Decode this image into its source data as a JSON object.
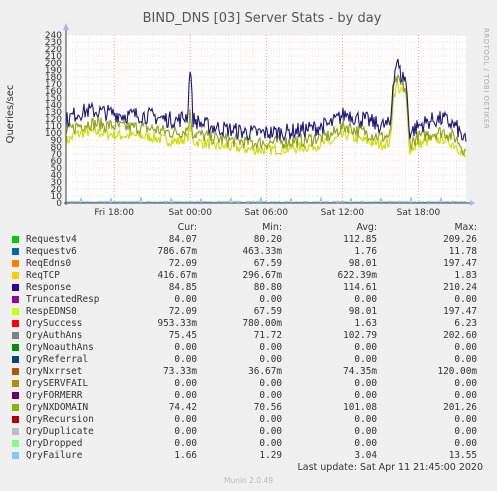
{
  "chart_data": {
    "type": "line",
    "title": "BIND_DNS [03] Server Stats - by day",
    "ylabel": "Queries/sec",
    "side_label": "RRDTOOL / TOBI OETIKER",
    "ylim": [
      0,
      240
    ],
    "y_ticks": [
      "0",
      "10",
      "20",
      "30",
      "40",
      "50",
      "60",
      "70",
      "80",
      "90",
      "100",
      "110",
      "120",
      "130",
      "140",
      "150",
      "160",
      "170",
      "180",
      "190",
      "200",
      "210",
      "220",
      "230",
      "240"
    ],
    "x_ticks": [
      "Fri 18:00",
      "Sat 00:00",
      "Sat 06:00",
      "Sat 12:00",
      "Sat 18:00"
    ],
    "x_tick_hours": [
      18,
      24,
      30,
      36,
      42
    ],
    "x_range_hours": [
      14.2,
      45.75
    ],
    "grid": true,
    "series": [
      {
        "name": "Response",
        "color": "#1a1a7a",
        "profile": [
          [
            14.2,
            118
          ],
          [
            15,
            128
          ],
          [
            16,
            132
          ],
          [
            17,
            130
          ],
          [
            18,
            128
          ],
          [
            19,
            125
          ],
          [
            20,
            126
          ],
          [
            21,
            124
          ],
          [
            22,
            120
          ],
          [
            23,
            118
          ],
          [
            23.8,
            125
          ],
          [
            24,
            205
          ],
          [
            24.2,
            120
          ],
          [
            25,
            112
          ],
          [
            26,
            108
          ],
          [
            27,
            105
          ],
          [
            28,
            102
          ],
          [
            29,
            100
          ],
          [
            30,
            100
          ],
          [
            31,
            101
          ],
          [
            32,
            102
          ],
          [
            33,
            105
          ],
          [
            34,
            108
          ],
          [
            35,
            112
          ],
          [
            36,
            125
          ],
          [
            36.5,
            128
          ],
          [
            37,
            122
          ],
          [
            38,
            118
          ],
          [
            39,
            110
          ],
          [
            39.8,
            112
          ],
          [
            40,
            175
          ],
          [
            40.3,
            205
          ],
          [
            40.6,
            182
          ],
          [
            41,
            178
          ],
          [
            41.3,
            100
          ],
          [
            42,
            110
          ],
          [
            43,
            118
          ],
          [
            44,
            120
          ],
          [
            45,
            108
          ],
          [
            45.75,
            85
          ]
        ],
        "noise": 12
      },
      {
        "name": "QryAuthAns",
        "color": "#8ea11a",
        "profile": [
          [
            14.2,
            100
          ],
          [
            15,
            110
          ],
          [
            16,
            114
          ],
          [
            17,
            112
          ],
          [
            18,
            110
          ],
          [
            19,
            108
          ],
          [
            20,
            108
          ],
          [
            21,
            106
          ],
          [
            22,
            102
          ],
          [
            23,
            100
          ],
          [
            23.8,
            106
          ],
          [
            24,
            130
          ],
          [
            24.2,
            100
          ],
          [
            25,
            96
          ],
          [
            26,
            92
          ],
          [
            27,
            90
          ],
          [
            28,
            88
          ],
          [
            29,
            86
          ],
          [
            30,
            86
          ],
          [
            31,
            87
          ],
          [
            32,
            88
          ],
          [
            33,
            90
          ],
          [
            34,
            93
          ],
          [
            35,
            96
          ],
          [
            36,
            108
          ],
          [
            36.5,
            110
          ],
          [
            37,
            104
          ],
          [
            38,
            100
          ],
          [
            39,
            94
          ],
          [
            39.8,
            96
          ],
          [
            40,
            160
          ],
          [
            40.3,
            176
          ],
          [
            40.6,
            168
          ],
          [
            41,
            164
          ],
          [
            41.3,
            85
          ],
          [
            42,
            94
          ],
          [
            43,
            100
          ],
          [
            44,
            102
          ],
          [
            45,
            92
          ],
          [
            45.75,
            72
          ]
        ],
        "noise": 10
      },
      {
        "name": "RespEDNS0",
        "color": "#ccdd00",
        "profile": [
          [
            14.2,
            88
          ],
          [
            15,
            98
          ],
          [
            16,
            102
          ],
          [
            17,
            100
          ],
          [
            18,
            98
          ],
          [
            19,
            96
          ],
          [
            20,
            96
          ],
          [
            21,
            94
          ],
          [
            22,
            90
          ],
          [
            23,
            88
          ],
          [
            23.8,
            94
          ],
          [
            24,
            110
          ],
          [
            24.2,
            88
          ],
          [
            25,
            86
          ],
          [
            26,
            82
          ],
          [
            27,
            80
          ],
          [
            28,
            78
          ],
          [
            29,
            76
          ],
          [
            30,
            76
          ],
          [
            31,
            77
          ],
          [
            32,
            78
          ],
          [
            33,
            80
          ],
          [
            34,
            83
          ],
          [
            35,
            86
          ],
          [
            36,
            96
          ],
          [
            36.5,
            98
          ],
          [
            37,
            92
          ],
          [
            38,
            88
          ],
          [
            39,
            84
          ],
          [
            39.8,
            86
          ],
          [
            40,
            150
          ],
          [
            40.3,
            168
          ],
          [
            40.6,
            160
          ],
          [
            41,
            156
          ],
          [
            41.3,
            76
          ],
          [
            42,
            84
          ],
          [
            43,
            90
          ],
          [
            44,
            92
          ],
          [
            45,
            82
          ],
          [
            45.75,
            64
          ]
        ],
        "noise": 8
      },
      {
        "name": "QryFailure",
        "color": "#7cc6f2",
        "profile": [
          [
            14.2,
            1.5
          ],
          [
            30,
            1.5
          ],
          [
            45.75,
            1.5
          ]
        ],
        "noise": 1,
        "spikes": 6
      }
    ]
  },
  "legend": {
    "headers": [
      "Cur:",
      "Min:",
      "Avg:",
      "Max:"
    ],
    "rows": [
      {
        "name": "Requestv4",
        "color": "#00cc00",
        "cur": "84.07",
        "min": "80.20",
        "avg": "112.85",
        "max": "209.26"
      },
      {
        "name": "Requestv6",
        "color": "#0066b3",
        "cur": "786.67m",
        "min": "463.33m",
        "avg": "1.76",
        "max": "11.78"
      },
      {
        "name": "ReqEdns0",
        "color": "#ff8000",
        "cur": "72.09",
        "min": "67.59",
        "avg": "98.01",
        "max": "197.47"
      },
      {
        "name": "ReqTCP",
        "color": "#ffcc00",
        "cur": "416.67m",
        "min": "296.67m",
        "avg": "622.39m",
        "max": "1.83"
      },
      {
        "name": "Response",
        "color": "#330099",
        "cur": "84.85",
        "min": "80.80",
        "avg": "114.61",
        "max": "210.24"
      },
      {
        "name": "TruncatedResp",
        "color": "#990099",
        "cur": "0.00",
        "min": "0.00",
        "avg": "0.00",
        "max": "0.00"
      },
      {
        "name": "RespEDNS0",
        "color": "#ccff00",
        "cur": "72.09",
        "min": "67.59",
        "avg": "98.01",
        "max": "197.47"
      },
      {
        "name": "QrySuccess",
        "color": "#ff0000",
        "cur": "953.33m",
        "min": "780.00m",
        "avg": "1.63",
        "max": "6.23"
      },
      {
        "name": "QryAuthAns",
        "color": "#808080",
        "cur": "75.45",
        "min": "71.72",
        "avg": "102.79",
        "max": "202.60"
      },
      {
        "name": "QryNoauthAns",
        "color": "#008f00",
        "cur": "0.00",
        "min": "0.00",
        "avg": "0.00",
        "max": "0.00"
      },
      {
        "name": "QryReferral",
        "color": "#00487d",
        "cur": "0.00",
        "min": "0.00",
        "avg": "0.00",
        "max": "0.00"
      },
      {
        "name": "QryNxrrset",
        "color": "#b35a00",
        "cur": "73.33m",
        "min": "36.67m",
        "avg": "74.35m",
        "max": "120.00m"
      },
      {
        "name": "QrySERVFAIL",
        "color": "#b38f00",
        "cur": "0.00",
        "min": "0.00",
        "avg": "0.00",
        "max": "0.00"
      },
      {
        "name": "QryFORMERR",
        "color": "#6b006b",
        "cur": "0.00",
        "min": "0.00",
        "avg": "0.00",
        "max": "0.00"
      },
      {
        "name": "QryNXDOMAIN",
        "color": "#8fb300",
        "cur": "74.42",
        "min": "70.56",
        "avg": "101.08",
        "max": "201.26"
      },
      {
        "name": "QryRecursion",
        "color": "#b30000",
        "cur": "0.00",
        "min": "0.00",
        "avg": "0.00",
        "max": "0.00"
      },
      {
        "name": "QryDuplicate",
        "color": "#bebebe",
        "cur": "0.00",
        "min": "0.00",
        "avg": "0.00",
        "max": "0.00"
      },
      {
        "name": "QryDropped",
        "color": "#80ff80",
        "cur": "0.00",
        "min": "0.00",
        "avg": "0.00",
        "max": "0.00"
      },
      {
        "name": "QryFailure",
        "color": "#80c9ff",
        "cur": "1.66",
        "min": "1.29",
        "avg": "3.04",
        "max": "13.55"
      }
    ]
  },
  "footer": {
    "last_update": "Last update: Sat Apr 11 21:45:00 2020",
    "munin": "Munin 2.0.49"
  }
}
